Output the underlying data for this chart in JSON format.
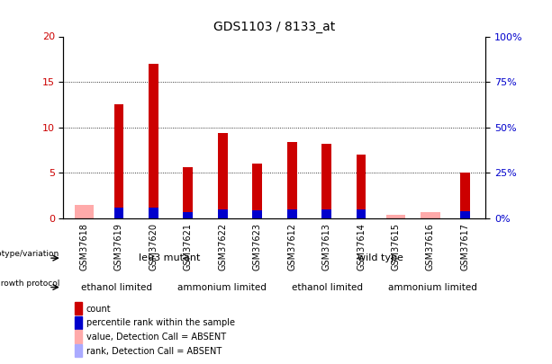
{
  "title": "GDS1103 / 8133_at",
  "samples": [
    "GSM37618",
    "GSM37619",
    "GSM37620",
    "GSM37621",
    "GSM37622",
    "GSM37623",
    "GSM37612",
    "GSM37613",
    "GSM37614",
    "GSM37615",
    "GSM37616",
    "GSM37617"
  ],
  "count_values": [
    0,
    12.5,
    17.0,
    5.6,
    9.4,
    6.0,
    8.4,
    8.2,
    7.0,
    0,
    0,
    5.0
  ],
  "percentile_values": [
    0,
    5.8,
    5.9,
    3.6,
    5.1,
    4.6,
    4.7,
    4.7,
    4.7,
    0,
    0,
    4.1
  ],
  "absent_count": [
    7.5,
    0,
    0,
    0,
    0,
    0,
    0,
    0,
    0,
    2.1,
    3.6,
    0
  ],
  "absent_rank": [
    4.6,
    0,
    0,
    0,
    0,
    0,
    0,
    0,
    0,
    0,
    0,
    0
  ],
  "ylim_left": [
    0,
    20
  ],
  "ylim_right": [
    0,
    100
  ],
  "yticks_left": [
    0,
    5,
    10,
    15,
    20
  ],
  "yticks_right": [
    0,
    25,
    50,
    75,
    100
  ],
  "ytick_labels_right": [
    "0%",
    "25%",
    "50%",
    "75%",
    "100%"
  ],
  "color_count": "#cc0000",
  "color_percentile": "#0000cc",
  "color_absent_count": "#ffaaaa",
  "color_absent_rank": "#aaaaff",
  "genotype_groups": [
    {
      "label": "leu3 mutant",
      "start": 0,
      "end": 6,
      "color": "#aaffaa"
    },
    {
      "label": "wild type",
      "start": 6,
      "end": 12,
      "color": "#44dd44"
    }
  ],
  "protocol_groups": [
    {
      "label": "ethanol limited",
      "start": 0,
      "end": 3,
      "color": "#ee88ee"
    },
    {
      "label": "ammonium limited",
      "start": 3,
      "end": 6,
      "color": "#cc44cc"
    },
    {
      "label": "ethanol limited",
      "start": 6,
      "end": 9,
      "color": "#ee88ee"
    },
    {
      "label": "ammonium limited",
      "start": 9,
      "end": 12,
      "color": "#cc44cc"
    }
  ],
  "legend_items": [
    {
      "label": "count",
      "color": "#cc0000"
    },
    {
      "label": "percentile rank within the sample",
      "color": "#0000cc"
    },
    {
      "label": "value, Detection Call = ABSENT",
      "color": "#ffaaaa"
    },
    {
      "label": "rank, Detection Call = ABSENT",
      "color": "#aaaaff"
    }
  ],
  "background_color": "#ffffff",
  "tick_label_color_left": "#cc0000",
  "tick_label_color_right": "#0000cc"
}
